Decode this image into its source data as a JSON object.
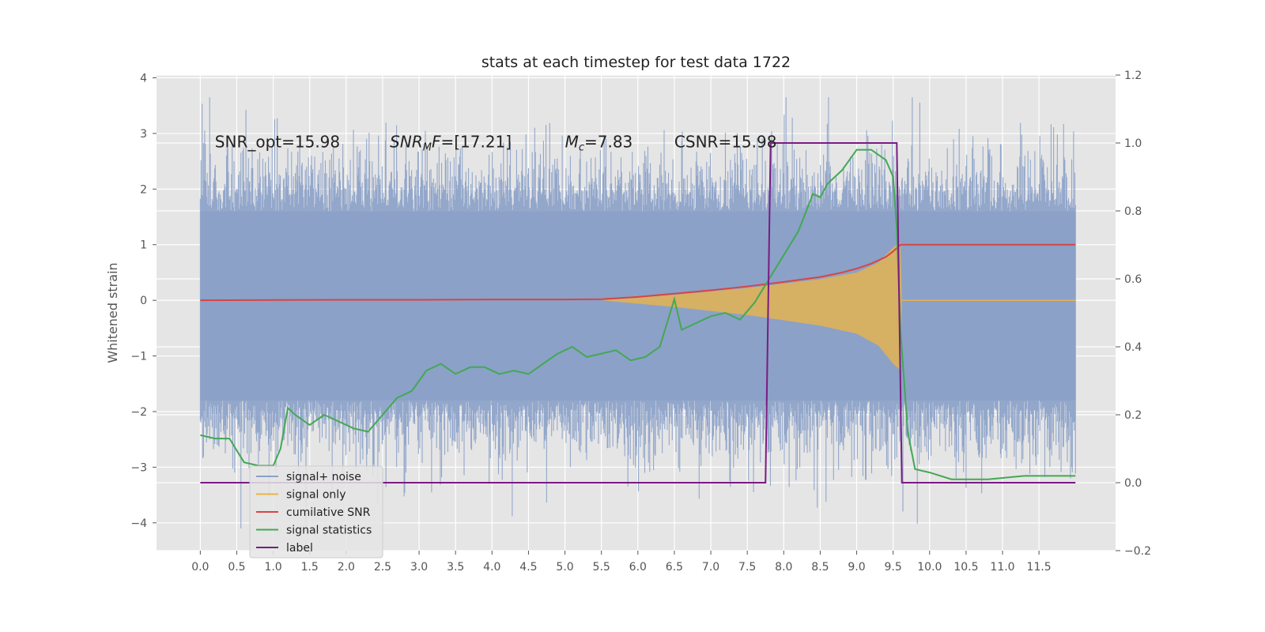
{
  "chart_data": {
    "type": "line",
    "title": "stats at each timestep for test data 1722",
    "xlabel": "",
    "ylabel": "Whitened strain",
    "y2label": "",
    "xlim": [
      -0.6,
      12.55
    ],
    "ylim": [
      -4.5,
      4.05
    ],
    "y2lim": [
      -0.2,
      1.2
    ],
    "x_ticks": [
      "0.0",
      "0.5",
      "1.0",
      "1.5",
      "2.0",
      "2.5",
      "3.0",
      "3.5",
      "4.0",
      "4.5",
      "5.0",
      "5.5",
      "6.0",
      "6.5",
      "7.0",
      "7.5",
      "8.0",
      "8.5",
      "9.0",
      "9.5",
      "10.0",
      "10.5",
      "11.0",
      "11.5"
    ],
    "y_ticks": [
      "4",
      "3",
      "2",
      "1",
      "0",
      "−1",
      "−2",
      "−3",
      "−4"
    ],
    "y2_ticks": [
      "1.2",
      "1.0",
      "0.8",
      "0.6",
      "0.4",
      "0.2",
      "0.0",
      "−0.2"
    ],
    "grid": true,
    "legend_position": "lower-left",
    "colors": {
      "background": "#e5e5e5",
      "grid": "#ffffff",
      "noise": "#8aa0c8",
      "signal": "#e8b44a",
      "snr": "#d64545",
      "stats": "#43a854",
      "label": "#7a1b82"
    },
    "annotations": [
      {
        "text": "SNR_opt=15.98",
        "x": 0.2,
        "y": 2.85
      },
      {
        "text_base": "SNR",
        "text_sub": "M",
        "text_rest": "F=[17.21]",
        "x": 2.6,
        "y": 2.85
      },
      {
        "text_base": "M",
        "text_sub": "c",
        "text_rest": "=7.83",
        "x": 5.0,
        "y": 2.85
      },
      {
        "text": "CSNR=15.98",
        "x": 6.5,
        "y": 2.85
      }
    ],
    "legend": [
      "signal+ noise",
      "signal only",
      "cumilative SNR",
      "signal statistics",
      "label"
    ],
    "noise_band": {
      "x_range": [
        0,
        12.0
      ],
      "upper_envelope_typical": 1.6,
      "lower_envelope_typical": -1.8,
      "peak_max": 3.65,
      "peak_min": -4.1
    },
    "signal_chirp": {
      "start_x": 5.5,
      "end_x": 9.6,
      "peak_amplitude": 1.05,
      "points": [
        {
          "x": 5.5,
          "amp": 0.0
        },
        {
          "x": 6.0,
          "amp": 0.05
        },
        {
          "x": 6.5,
          "amp": 0.1
        },
        {
          "x": 7.0,
          "amp": 0.16
        },
        {
          "x": 7.5,
          "amp": 0.22
        },
        {
          "x": 8.0,
          "amp": 0.3
        },
        {
          "x": 8.5,
          "amp": 0.38
        },
        {
          "x": 9.0,
          "amp": 0.5
        },
        {
          "x": 9.3,
          "amp": 0.68
        },
        {
          "x": 9.5,
          "amp": 0.95
        },
        {
          "x": 9.6,
          "amp": 1.05
        },
        {
          "x": 9.62,
          "amp": 0.0
        }
      ]
    },
    "series": [
      {
        "name": "cumilative SNR",
        "axis": "left",
        "x": [
          0,
          1,
          2,
          3,
          4,
          5,
          5.5,
          6.0,
          6.5,
          7.0,
          7.5,
          8.0,
          8.5,
          8.8,
          9.0,
          9.2,
          9.4,
          9.5,
          9.6,
          10.0,
          11.0,
          12.0
        ],
        "y": [
          0,
          0.005,
          0.01,
          0.01,
          0.015,
          0.015,
          0.02,
          0.06,
          0.12,
          0.18,
          0.25,
          0.33,
          0.42,
          0.5,
          0.57,
          0.66,
          0.78,
          0.88,
          1.0,
          1.0,
          1.0,
          1.0
        ]
      },
      {
        "name": "signal statistics",
        "axis": "right",
        "x": [
          0.0,
          0.2,
          0.4,
          0.6,
          0.8,
          1.0,
          1.1,
          1.2,
          1.3,
          1.5,
          1.7,
          1.9,
          2.1,
          2.3,
          2.5,
          2.7,
          2.9,
          3.1,
          3.3,
          3.5,
          3.7,
          3.9,
          4.1,
          4.3,
          4.5,
          4.7,
          4.9,
          5.1,
          5.3,
          5.5,
          5.7,
          5.9,
          6.1,
          6.3,
          6.5,
          6.6,
          6.8,
          7.0,
          7.2,
          7.4,
          7.6,
          7.8,
          8.0,
          8.2,
          8.4,
          8.5,
          8.6,
          8.8,
          9.0,
          9.2,
          9.4,
          9.5,
          9.55,
          9.6,
          9.7,
          9.8,
          10.0,
          10.3,
          10.8,
          11.3,
          11.6,
          12.0
        ],
        "y": [
          0.14,
          0.13,
          0.13,
          0.06,
          0.05,
          0.05,
          0.1,
          0.22,
          0.2,
          0.17,
          0.2,
          0.18,
          0.16,
          0.15,
          0.2,
          0.25,
          0.27,
          0.33,
          0.35,
          0.32,
          0.34,
          0.34,
          0.32,
          0.33,
          0.32,
          0.35,
          0.38,
          0.4,
          0.37,
          0.38,
          0.39,
          0.36,
          0.37,
          0.4,
          0.54,
          0.45,
          0.47,
          0.49,
          0.5,
          0.48,
          0.53,
          0.6,
          0.67,
          0.74,
          0.85,
          0.84,
          0.88,
          0.92,
          0.98,
          0.98,
          0.95,
          0.9,
          0.75,
          0.45,
          0.15,
          0.04,
          0.03,
          0.01,
          0.01,
          0.02,
          0.02,
          0.02
        ]
      },
      {
        "name": "label",
        "axis": "right",
        "x": [
          0.0,
          7.75,
          7.75,
          7.82,
          7.82,
          9.55,
          9.55,
          9.62,
          9.62,
          12.0
        ],
        "y": [
          0.0,
          0.0,
          0.0,
          1.0,
          1.0,
          1.0,
          1.0,
          0.0,
          0.0,
          0.0
        ]
      }
    ]
  }
}
